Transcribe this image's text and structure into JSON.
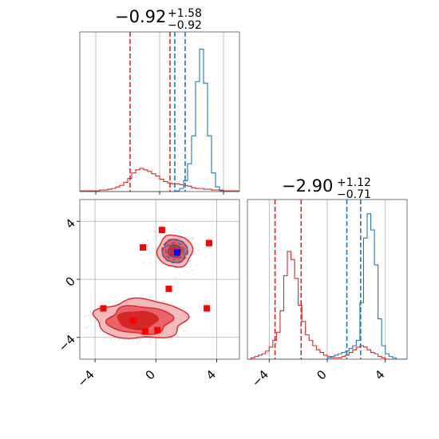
{
  "chart_data": {
    "type": "corner",
    "colors": {
      "red": "#d62728",
      "blue": "#1f77b4",
      "marker_red": "#ff0000",
      "marker_blue": "#0000ff",
      "grid": "#b0b0b0"
    },
    "panels": [
      {
        "id": "hist-x",
        "type": "histogram",
        "title": {
          "median": "−0.92",
          "plus": "+1.58",
          "minus": "−0.92"
        },
        "x_range": [
          -5,
          5
        ],
        "x_ticks": [
          -4,
          0,
          4
        ],
        "bin_edges_start": -5,
        "bin_width": 0.25,
        "series": [
          {
            "color": "red",
            "counts": [
              1,
              1,
              1,
              1,
              1,
              2,
              2,
              3,
              4,
              6,
              8,
              12,
              17,
              24,
              28,
              30,
              28,
              26,
              23,
              20,
              16,
              13,
              11,
              10,
              10,
              9,
              8,
              7,
              5,
              4,
              4,
              3,
              3,
              2,
              2,
              2,
              1,
              1,
              1,
              1
            ]
          },
          {
            "color": "blue",
            "counts": [
              0,
              0,
              0,
              0,
              0,
              0,
              0,
              0,
              0,
              0,
              0,
              0,
              0,
              0,
              0,
              0,
              0,
              0,
              0,
              0,
              0,
              0,
              0,
              0,
              1,
              4,
              14,
              36,
              72,
              142,
              184,
              140,
              72,
              24,
              6,
              1,
              0,
              0,
              0,
              0
            ]
          }
        ],
        "y_max": 200,
        "quantile_lines": [
          {
            "color": "red",
            "x": [
              -1.85,
              0.65
            ]
          },
          {
            "color": "blue",
            "x": [
              0.95,
              1.6
            ]
          }
        ]
      },
      {
        "id": "hist-y",
        "type": "histogram",
        "title": {
          "median": "−2.90",
          "plus": "+1.12",
          "minus": "−0.71"
        },
        "x_range": [
          -5.5,
          5.5
        ],
        "x_ticks": [
          -4,
          0,
          4
        ],
        "x_tick_labels": [
          "−4",
          "0",
          "4"
        ],
        "bin_edges_start": -5.5,
        "bin_width": 0.25,
        "series": [
          {
            "color": "red",
            "counts": [
              0,
              1,
              2,
              3,
              4,
              6,
              9,
              14,
              20,
              36,
              62,
              80,
              74,
              60,
              40,
              28,
              18,
              14,
              10,
              7,
              5,
              3,
              2,
              1,
              1,
              1,
              2,
              3,
              5,
              7,
              9,
              10,
              9,
              7,
              5,
              4,
              2,
              1,
              0,
              0,
              0,
              0,
              0,
              0
            ]
          },
          {
            "color": "blue",
            "counts": [
              0,
              0,
              0,
              0,
              0,
              0,
              0,
              0,
              0,
              0,
              0,
              0,
              0,
              0,
              0,
              0,
              0,
              0,
              0,
              0,
              0,
              0,
              1,
              2,
              3,
              4,
              5,
              6,
              8,
              10,
              14,
              42,
              90,
              108,
              96,
              70,
              30,
              10,
              4,
              2,
              1,
              0,
              0,
              0
            ]
          }
        ],
        "y_max": 115,
        "quantile_lines": [
          {
            "color": "red",
            "x": [
              -3.6,
              -1.8
            ]
          },
          {
            "color": "blue",
            "x": [
              1.35,
              2.3
            ]
          }
        ]
      },
      {
        "id": "scatter-xy",
        "type": "contour",
        "x_range": [
          -5,
          5.5
        ],
        "y_range": [
          -5.5,
          5.5
        ],
        "x_ticks": [
          -4,
          0,
          4
        ],
        "x_tick_labels": [
          "−4",
          "0",
          "4"
        ],
        "y_ticks": [
          -4,
          0,
          4
        ],
        "y_tick_labels": [
          "−4",
          "0",
          "4"
        ],
        "blue_contour_center": [
          1.25,
          1.95
        ],
        "blue_contour_radii": [
          [
            0.35,
            0.35
          ],
          [
            0.6,
            0.6
          ],
          [
            0.85,
            0.8
          ]
        ],
        "red_contour_upper": {
          "center": [
            1.25,
            1.95
          ],
          "radii": [
            [
              0.45,
              0.45
            ],
            [
              0.8,
              0.8
            ],
            [
              1.15,
              1.1
            ]
          ]
        },
        "red_markers": [
          {
            "x": 0.4,
            "y": 3.4
          },
          {
            "x": -0.85,
            "y": 2.2
          },
          {
            "x": 3.5,
            "y": 2.5
          },
          {
            "x": 0.85,
            "y": -0.65
          },
          {
            "x": -3.45,
            "y": -2.0
          },
          {
            "x": 3.35,
            "y": -2.0
          },
          {
            "x": -1.5,
            "y": -2.85
          },
          {
            "x": -0.7,
            "y": -3.6
          },
          {
            "x": 0.1,
            "y": -3.5
          }
        ],
        "blue_marker": {
          "x": 1.4,
          "y": 1.85
        }
      }
    ]
  }
}
